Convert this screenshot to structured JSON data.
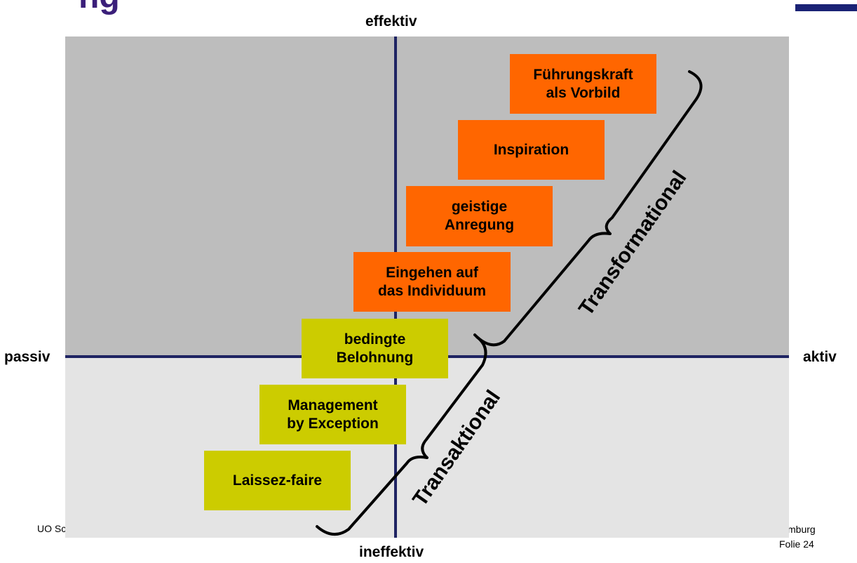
{
  "slide": {
    "title_fragment": "ng",
    "footer_left": "UO Sc",
    "footer_right": "mburg",
    "page": "Folie 24"
  },
  "axes": {
    "top": "effektiv",
    "bottom": "ineffektiv",
    "left": "passiv",
    "right": "aktiv"
  },
  "styles": [
    {
      "label": "Führungskraft\nals Vorbild",
      "group": "transformational"
    },
    {
      "label": "Inspiration",
      "group": "transformational"
    },
    {
      "label": "geistige\nAnregung",
      "group": "transformational"
    },
    {
      "label": "Eingehen auf\ndas Individuum",
      "group": "transformational"
    },
    {
      "label": "bedingte\nBelohnung",
      "group": "transaktional"
    },
    {
      "label": "Management\nby Exception",
      "group": "transaktional"
    },
    {
      "label": "Laissez-faire",
      "group": "transaktional"
    }
  ],
  "braces": {
    "upper": "Transformational",
    "lower": "Transaktional"
  },
  "colors": {
    "transformational": "#ff6600",
    "transaktional": "#cccc00",
    "quadrant_top": "#bdbdbd",
    "quadrant_bottom": "#e4e4e4",
    "axis": "#1f2463",
    "title": "#3b1f7a"
  }
}
